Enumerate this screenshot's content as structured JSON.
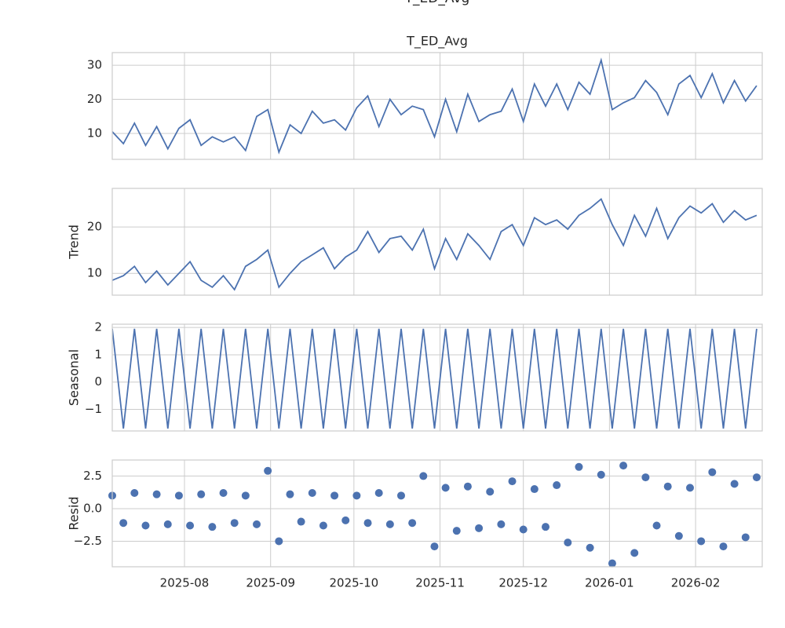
{
  "title": "T_ED_Avg",
  "chart_data": [
    {
      "type": "line",
      "title": "T_ED_Avg",
      "color": "#4c72b0",
      "grid": true,
      "x": [
        "2025-07-06",
        "2025-07-10",
        "2025-07-14",
        "2025-07-18",
        "2025-07-22",
        "2025-07-26",
        "2025-07-30",
        "2025-08-03",
        "2025-08-07",
        "2025-08-11",
        "2025-08-15",
        "2025-08-19",
        "2025-08-23",
        "2025-08-27",
        "2025-08-31",
        "2025-09-04",
        "2025-09-08",
        "2025-09-12",
        "2025-09-16",
        "2025-09-20",
        "2025-09-24",
        "2025-09-28",
        "2025-10-02",
        "2025-10-06",
        "2025-10-10",
        "2025-10-14",
        "2025-10-18",
        "2025-10-22",
        "2025-10-26",
        "2025-10-30",
        "2025-11-03",
        "2025-11-07",
        "2025-11-11",
        "2025-11-15",
        "2025-11-19",
        "2025-11-23",
        "2025-11-27",
        "2025-12-01",
        "2025-12-05",
        "2025-12-09",
        "2025-12-13",
        "2025-12-17",
        "2025-12-21",
        "2025-12-25",
        "2025-12-29",
        "2026-01-02",
        "2026-01-06",
        "2026-01-10",
        "2026-01-14",
        "2026-01-18",
        "2026-01-22",
        "2026-01-26",
        "2026-01-30",
        "2026-02-03",
        "2026-02-07",
        "2026-02-11",
        "2026-02-15",
        "2026-02-19",
        "2026-02-23"
      ],
      "xlim": [
        "2025-07-06",
        "2026-02-25"
      ],
      "values": [
        10.5,
        7.0,
        13.0,
        6.5,
        12.0,
        5.5,
        11.5,
        14.0,
        6.5,
        9.0,
        7.5,
        9.0,
        5.0,
        15.0,
        17.0,
        4.5,
        12.5,
        10.0,
        16.5,
        13.0,
        14.0,
        11.0,
        17.5,
        21.0,
        12.0,
        20.0,
        15.5,
        18.0,
        17.0,
        9.0,
        20.0,
        10.5,
        21.5,
        13.5,
        15.5,
        16.5,
        23.0,
        13.5,
        24.5,
        18.0,
        24.5,
        17.0,
        25.0,
        21.5,
        31.5,
        17.0,
        19.0,
        20.5,
        25.5,
        22.0,
        15.5,
        24.5,
        27.0,
        20.5,
        27.5,
        19.0,
        25.5,
        19.5,
        24.0
      ],
      "ylim": [
        2.4,
        33.7
      ],
      "yticks": [
        10,
        20,
        30
      ]
    },
    {
      "type": "line",
      "ylabel": "Trend",
      "color": "#4c72b0",
      "grid": true,
      "values": [
        8.5,
        9.5,
        11.5,
        8.0,
        10.5,
        7.5,
        10.0,
        12.5,
        8.5,
        7.0,
        9.5,
        6.5,
        11.5,
        13.0,
        15.0,
        7.0,
        10.0,
        12.5,
        14.0,
        15.5,
        11.0,
        13.5,
        15.0,
        19.0,
        14.5,
        17.5,
        18.0,
        15.0,
        19.5,
        11.0,
        17.5,
        13.0,
        18.5,
        16.0,
        13.0,
        19.0,
        20.5,
        16.0,
        22.0,
        20.5,
        21.5,
        19.5,
        22.5,
        24.0,
        26.0,
        20.5,
        16.0,
        22.5,
        18.0,
        24.0,
        17.5,
        22.0,
        24.5,
        23.0,
        25.0,
        21.0,
        23.5,
        21.5,
        22.5
      ],
      "ylim": [
        5.3,
        28.3
      ],
      "yticks": [
        10,
        20
      ]
    },
    {
      "type": "line",
      "ylabel": "Seasonal",
      "color": "#4c72b0",
      "grid": true,
      "values": [
        1.95,
        -1.7,
        1.95,
        -1.7,
        1.95,
        -1.7,
        1.95,
        -1.7,
        1.95,
        -1.7,
        1.95,
        -1.7,
        1.95,
        -1.7,
        1.95,
        -1.7,
        1.95,
        -1.7,
        1.95,
        -1.7,
        1.95,
        -1.7,
        1.95,
        -1.7,
        1.95,
        -1.7,
        1.95,
        -1.7,
        1.95,
        -1.7,
        1.95,
        -1.7,
        1.95,
        -1.7,
        1.95,
        -1.7,
        1.95,
        -1.7,
        1.95,
        -1.7,
        1.95,
        -1.7,
        1.95,
        -1.7,
        1.95,
        -1.7,
        1.95,
        -1.7,
        1.95,
        -1.7,
        1.95,
        -1.7,
        1.95,
        -1.7,
        1.95,
        -1.7,
        1.95,
        -1.7,
        1.95
      ],
      "ylim": [
        -1.79,
        2.12
      ],
      "yticks": [
        {
          "value": -1,
          "label": "−1"
        },
        0,
        1,
        2
      ]
    },
    {
      "type": "scatter",
      "ylabel": "Resid",
      "color": "#4c72b0",
      "grid": true,
      "values": [
        1.0,
        -1.1,
        1.2,
        -1.3,
        1.1,
        -1.2,
        1.0,
        -1.3,
        1.1,
        -1.4,
        1.2,
        -1.1,
        1.0,
        -1.2,
        2.9,
        -2.5,
        1.1,
        -1.0,
        1.2,
        -1.3,
        1.0,
        -0.9,
        1.0,
        -1.1,
        1.2,
        -1.2,
        1.0,
        -1.1,
        2.5,
        -2.9,
        1.6,
        -1.7,
        1.7,
        -1.5,
        1.3,
        -1.2,
        2.1,
        -1.6,
        1.5,
        -1.4,
        1.8,
        -2.6,
        3.2,
        -3.0,
        2.6,
        -4.2,
        3.3,
        -3.4,
        2.4,
        -1.3,
        1.7,
        -2.1,
        1.6,
        -2.5,
        2.8,
        -2.9,
        1.9,
        -2.2,
        2.4
      ],
      "ylim": [
        -4.46,
        3.73
      ],
      "yticks": [
        {
          "value": -2.5,
          "label": "−2.5"
        },
        {
          "value": 0,
          "label": "0.0"
        },
        2.5
      ],
      "xticks": [
        {
          "value": "2025-08-01",
          "label": "2025-08"
        },
        {
          "value": "2025-09-01",
          "label": "2025-09"
        },
        {
          "value": "2025-10-01",
          "label": "2025-10"
        },
        {
          "value": "2025-11-01",
          "label": "2025-11"
        },
        {
          "value": "2025-12-01",
          "label": "2025-12"
        },
        {
          "value": "2026-01-01",
          "label": "2026-01"
        },
        {
          "value": "2026-02-01",
          "label": "2026-02"
        }
      ]
    }
  ]
}
